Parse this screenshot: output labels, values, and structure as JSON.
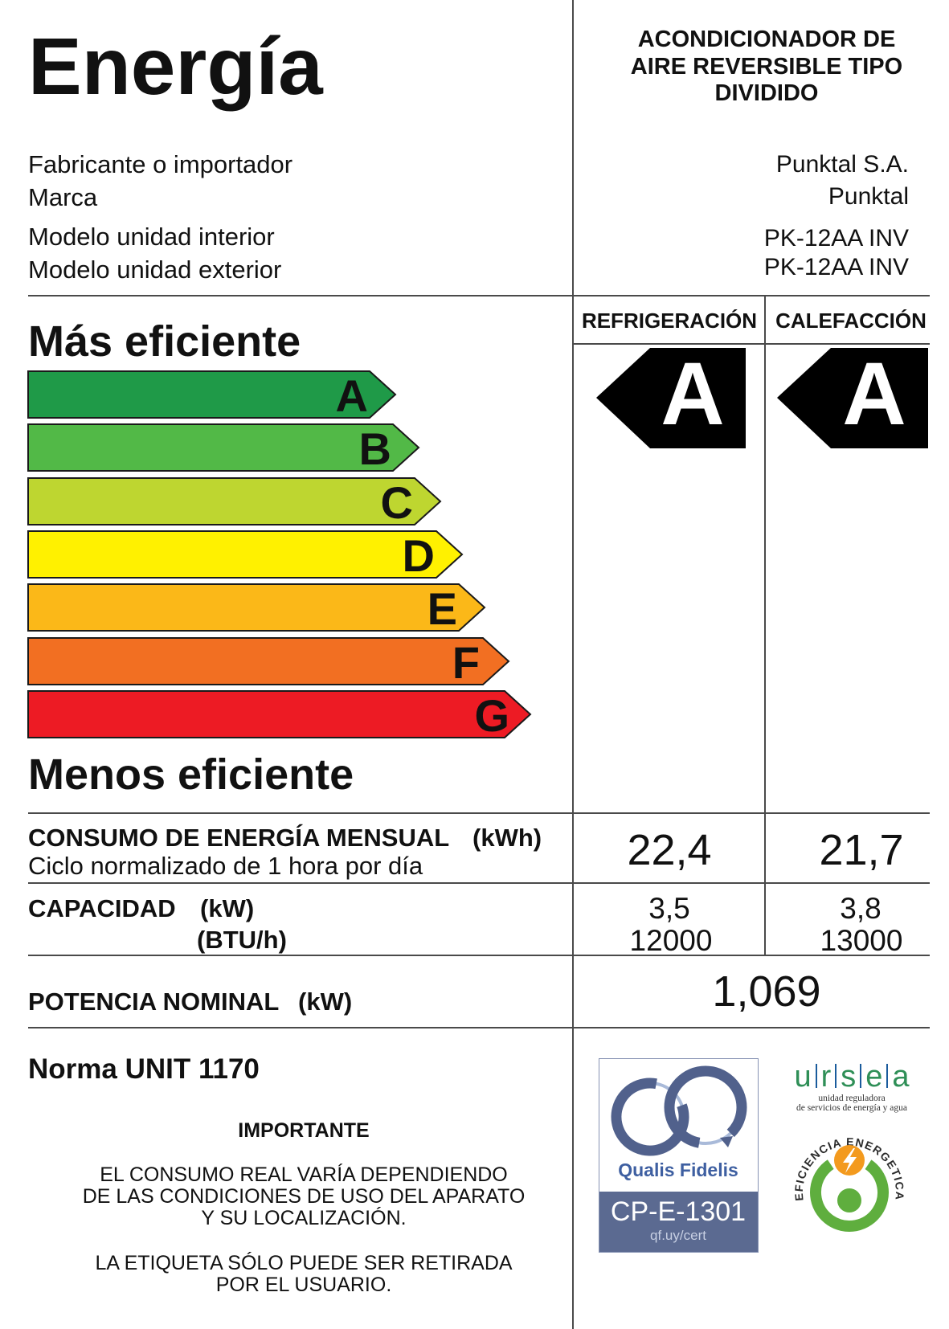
{
  "header": {
    "title": "Energía",
    "product_type_lines": [
      "ACONDICIONADOR DE",
      "AIRE REVERSIBLE TIPO",
      "DIVIDIDO"
    ]
  },
  "info": {
    "rows": [
      {
        "label": "Fabricante o importador",
        "value": "Punktal S.A."
      },
      {
        "label": "Marca",
        "value": "Punktal"
      },
      {
        "label": "Modelo unidad interior",
        "value": "PK-12AA INV"
      },
      {
        "label": "Modelo unidad exterior",
        "value": "PK-12AA INV"
      }
    ]
  },
  "scale": {
    "top_label": "Más eficiente",
    "bottom_label": "Menos eficiente",
    "classes": [
      {
        "letter": "A",
        "color": "#1f9a48"
      },
      {
        "letter": "B",
        "color": "#52b947"
      },
      {
        "letter": "C",
        "color": "#bed630"
      },
      {
        "letter": "D",
        "color": "#fff100"
      },
      {
        "letter": "E",
        "color": "#fbb818"
      },
      {
        "letter": "F",
        "color": "#f26f22"
      },
      {
        "letter": "G",
        "color": "#ed1b24"
      }
    ]
  },
  "modes": {
    "cooling": {
      "header": "REFRIGERACIÓN",
      "efficiency_class": "A",
      "monthly_consumption": "22,4",
      "capacity_kw": "3,5",
      "capacity_btu_h": "12000"
    },
    "heating": {
      "header": "CALEFACCIÓN",
      "efficiency_class": "A",
      "monthly_consumption": "21,7",
      "capacity_kw": "3,8",
      "capacity_btu_h": "13000"
    }
  },
  "consumption": {
    "title": "CONSUMO DE ENERGÍA MENSUAL",
    "unit": "(kWh)",
    "subtitle": "Ciclo normalizado de 1 hora por día"
  },
  "capacity": {
    "title": "CAPACIDAD",
    "unit_kw": "(kW)",
    "unit_btu": "(BTU/h)"
  },
  "nominal_power": {
    "title": "POTENCIA NOMINAL",
    "unit": "(kW)",
    "value": "1,069"
  },
  "norm": "Norma UNIT 1170",
  "notice": {
    "heading": "IMPORTANTE",
    "paragraph1_lines": [
      "EL CONSUMO REAL VARÍA DEPENDIENDO",
      "DE LAS CONDICIONES DE USO DEL APARATO",
      "Y SU LOCALIZACIÓN."
    ],
    "paragraph2_lines": [
      "LA ETIQUETA SÓLO PUEDE SER RETIRADA",
      "POR EL USUARIO."
    ]
  },
  "logos": {
    "qualis": {
      "name": "Qualis Fidelis",
      "code": "CP-E-1301",
      "link_text": "qf.uy/cert",
      "band_color": "#5b6a91"
    },
    "ursea": {
      "letters": [
        "u",
        "r",
        "s",
        "e",
        "a"
      ],
      "line1": "unidad reguladora",
      "line2": "de servicios de energía y agua"
    },
    "efficiency_seal": {
      "text": "EFICIENCIA ENERGETICA"
    }
  }
}
